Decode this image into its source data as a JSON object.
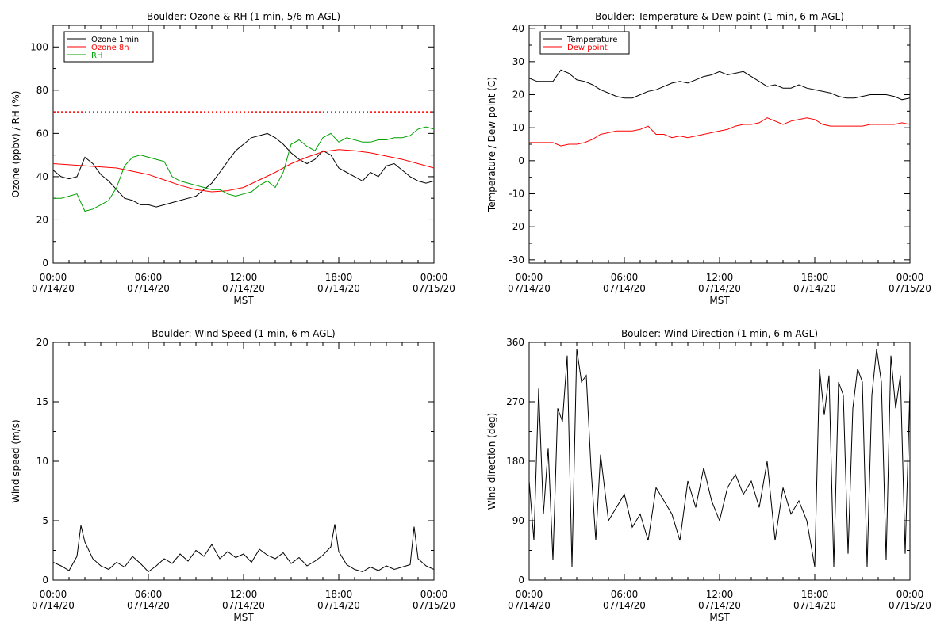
{
  "chart_data": [
    {
      "type": "line",
      "title": "Boulder: Ozone & RH (1 min, 5/6 m AGL)",
      "xlabel": "MST",
      "ylabel": "Ozone (ppbv) / RH (%)",
      "xlim": [
        0,
        24
      ],
      "ylim": [
        0,
        110
      ],
      "x_ticks": [
        {
          "v": 0,
          "l1": "00:00",
          "l2": "07/14/20"
        },
        {
          "v": 6,
          "l1": "06:00",
          "l2": "07/14/20"
        },
        {
          "v": 12,
          "l1": "12:00",
          "l2": "07/14/20"
        },
        {
          "v": 18,
          "l1": "18:00",
          "l2": "07/14/20"
        },
        {
          "v": 24,
          "l1": "00:00",
          "l2": "07/15/20"
        }
      ],
      "y_ticks": [
        0,
        20,
        40,
        60,
        80,
        100
      ],
      "legend": {
        "placement": "top-left"
      },
      "reference_lines": [
        {
          "y": 70,
          "color": "#ff0000",
          "style": "dotted"
        }
      ],
      "series": [
        {
          "name": "Ozone 1min",
          "color": "#000000",
          "x": [
            0,
            0.5,
            1,
            1.5,
            2,
            2.5,
            3,
            3.5,
            4,
            4.5,
            5,
            5.5,
            6,
            6.5,
            7,
            7.5,
            8,
            8.5,
            9,
            9.5,
            10,
            10.5,
            11,
            11.5,
            12,
            12.5,
            13,
            13.5,
            14,
            14.5,
            15,
            15.5,
            16,
            16.5,
            17,
            17.5,
            18,
            18.5,
            19,
            19.5,
            20,
            20.5,
            21,
            21.5,
            22,
            22.5,
            23,
            23.5,
            24
          ],
          "y": [
            43,
            40,
            39,
            40,
            49,
            46,
            41,
            38,
            34,
            30,
            29,
            27,
            27,
            26,
            27,
            28,
            29,
            30,
            31,
            34,
            37,
            42,
            47,
            52,
            55,
            58,
            59,
            60,
            58,
            55,
            51,
            48,
            46,
            48,
            52,
            50,
            44,
            42,
            40,
            38,
            42,
            40,
            45,
            46,
            43,
            40,
            38,
            37,
            38
          ]
        },
        {
          "name": "Ozone 8h",
          "color": "#ff0000",
          "x": [
            0,
            1,
            2,
            3,
            4,
            5,
            6,
            7,
            8,
            9,
            10,
            11,
            12,
            13,
            14,
            15,
            16,
            17,
            18,
            19,
            20,
            21,
            22,
            23,
            24
          ],
          "y": [
            46,
            45.5,
            45,
            44.5,
            44,
            42.5,
            41,
            38.5,
            36,
            34,
            33,
            33.5,
            35,
            38.5,
            42,
            46,
            49,
            51.5,
            52.5,
            52,
            51,
            49.5,
            48,
            46,
            44
          ]
        },
        {
          "name": "RH",
          "color": "#00a000",
          "x": [
            0,
            0.5,
            1,
            1.5,
            2,
            2.5,
            3,
            3.5,
            4,
            4.5,
            5,
            5.5,
            6,
            6.5,
            7,
            7.5,
            8,
            8.5,
            9,
            9.5,
            10,
            10.5,
            11,
            11.5,
            12,
            12.5,
            13,
            13.5,
            14,
            14.5,
            15,
            15.5,
            16,
            16.5,
            17,
            17.5,
            18,
            18.5,
            19,
            19.5,
            20,
            20.5,
            21,
            21.5,
            22,
            22.5,
            23,
            23.5,
            24
          ],
          "y": [
            30,
            30,
            31,
            32,
            24,
            25,
            27,
            29,
            35,
            45,
            49,
            50,
            49,
            48,
            47,
            40,
            38,
            37,
            36,
            35,
            34,
            34,
            32,
            31,
            32,
            33,
            36,
            38,
            35,
            42,
            55,
            57,
            54,
            52,
            58,
            60,
            56,
            58,
            57,
            56,
            56,
            57,
            57,
            58,
            58,
            59,
            62,
            63,
            62
          ]
        }
      ]
    },
    {
      "type": "line",
      "title": "Boulder: Temperature & Dew point (1 min, 6 m AGL)",
      "xlabel": "MST",
      "ylabel": "Temperature / Dew point (C)",
      "xlim": [
        0,
        24
      ],
      "ylim": [
        -31,
        41
      ],
      "x_ticks": [
        {
          "v": 0,
          "l1": "00:00",
          "l2": "07/14/20"
        },
        {
          "v": 6,
          "l1": "06:00",
          "l2": "07/14/20"
        },
        {
          "v": 12,
          "l1": "12:00",
          "l2": "07/14/20"
        },
        {
          "v": 18,
          "l1": "18:00",
          "l2": "07/14/20"
        },
        {
          "v": 24,
          "l1": "00:00",
          "l2": "07/15/20"
        }
      ],
      "y_ticks": [
        -30,
        -20,
        -10,
        0,
        10,
        20,
        30,
        40
      ],
      "legend": {
        "placement": "top-left"
      },
      "series": [
        {
          "name": "Temperature",
          "color": "#000000",
          "x": [
            0,
            0.5,
            1,
            1.5,
            2,
            2.5,
            3,
            3.5,
            4,
            4.5,
            5,
            5.5,
            6,
            6.5,
            7,
            7.5,
            8,
            8.5,
            9,
            9.5,
            10,
            10.5,
            11,
            11.5,
            12,
            12.5,
            13,
            13.5,
            14,
            14.5,
            15,
            15.5,
            16,
            16.5,
            17,
            17.5,
            18,
            18.5,
            19,
            19.5,
            20,
            20.5,
            21,
            21.5,
            22,
            22.5,
            23,
            23.5,
            24
          ],
          "y": [
            25,
            24,
            24,
            24,
            27.5,
            26.5,
            24.5,
            24,
            23,
            21.5,
            20.5,
            19.5,
            19,
            19,
            20,
            21,
            21.5,
            22.5,
            23.5,
            24,
            23.5,
            24.5,
            25.5,
            26,
            27,
            26,
            26.5,
            27,
            25.5,
            24,
            22.5,
            23,
            22,
            22,
            23,
            22,
            21.5,
            21,
            20.5,
            19.5,
            19,
            19,
            19.5,
            20,
            20,
            20,
            19.5,
            18.5,
            19
          ]
        },
        {
          "name": "Dew point",
          "color": "#ff0000",
          "x": [
            0,
            0.5,
            1,
            1.5,
            2,
            2.5,
            3,
            3.5,
            4,
            4.5,
            5,
            5.5,
            6,
            6.5,
            7,
            7.5,
            8,
            8.5,
            9,
            9.5,
            10,
            10.5,
            11,
            11.5,
            12,
            12.5,
            13,
            13.5,
            14,
            14.5,
            15,
            15.5,
            16,
            16.5,
            17,
            17.5,
            18,
            18.5,
            19,
            19.5,
            20,
            20.5,
            21,
            21.5,
            22,
            22.5,
            23,
            23.5,
            24
          ],
          "y": [
            5.5,
            5.5,
            5.5,
            5.5,
            4.5,
            5,
            5,
            5.5,
            6.5,
            8,
            8.5,
            9,
            9,
            9,
            9.5,
            10.5,
            8,
            8,
            7,
            7.5,
            7,
            7.5,
            8,
            8.5,
            9,
            9.5,
            10.5,
            11,
            11,
            11.5,
            13,
            12,
            11,
            12,
            12.5,
            13,
            12.5,
            11,
            10.5,
            10.5,
            10.5,
            10.5,
            10.5,
            11,
            11,
            11,
            11,
            11.5,
            11
          ]
        }
      ]
    },
    {
      "type": "line",
      "title": "Boulder: Wind Speed (1 min, 6 m AGL)",
      "xlabel": "MST",
      "ylabel": "Wind speed (m/s)",
      "xlim": [
        0,
        24
      ],
      "ylim": [
        0,
        20
      ],
      "x_ticks": [
        {
          "v": 0,
          "l1": "00:00",
          "l2": "07/14/20"
        },
        {
          "v": 6,
          "l1": "06:00",
          "l2": "07/14/20"
        },
        {
          "v": 12,
          "l1": "12:00",
          "l2": "07/14/20"
        },
        {
          "v": 18,
          "l1": "18:00",
          "l2": "07/14/20"
        },
        {
          "v": 24,
          "l1": "00:00",
          "l2": "07/15/20"
        }
      ],
      "y_ticks": [
        0,
        5,
        10,
        15,
        20
      ],
      "series": [
        {
          "color": "#000000",
          "x": [
            0,
            0.5,
            1,
            1.5,
            1.75,
            2,
            2.5,
            3,
            3.5,
            4,
            4.5,
            5,
            5.5,
            6,
            6.5,
            7,
            7.5,
            8,
            8.5,
            9,
            9.5,
            10,
            10.5,
            11,
            11.5,
            12,
            12.5,
            13,
            13.5,
            14,
            14.5,
            15,
            15.5,
            16,
            16.5,
            17,
            17.5,
            17.75,
            18,
            18.5,
            19,
            19.5,
            20,
            20.5,
            21,
            21.5,
            22,
            22.5,
            22.75,
            23,
            23.5,
            24
          ],
          "y": [
            1.5,
            1.2,
            0.8,
            2,
            4.6,
            3.2,
            1.8,
            1.2,
            0.9,
            1.5,
            1.1,
            2,
            1.4,
            0.7,
            1.2,
            1.8,
            1.4,
            2.2,
            1.6,
            2.5,
            2,
            3,
            1.8,
            2.4,
            1.9,
            2.2,
            1.5,
            2.6,
            2.1,
            1.8,
            2.3,
            1.4,
            1.9,
            1.2,
            1.6,
            2.1,
            2.8,
            4.7,
            2.4,
            1.3,
            0.9,
            0.7,
            1.1,
            0.8,
            1.2,
            0.9,
            1.1,
            1.3,
            4.5,
            1.8,
            1.2,
            0.9
          ]
        }
      ]
    },
    {
      "type": "line",
      "title": "Boulder: Wind Direction (1 min, 6 m AGL)",
      "xlabel": "MST",
      "ylabel": "Wind direction (deg)",
      "xlim": [
        0,
        24
      ],
      "ylim": [
        0,
        360
      ],
      "x_ticks": [
        {
          "v": 0,
          "l1": "00:00",
          "l2": "07/14/20"
        },
        {
          "v": 6,
          "l1": "06:00",
          "l2": "07/14/20"
        },
        {
          "v": 12,
          "l1": "12:00",
          "l2": "07/14/20"
        },
        {
          "v": 18,
          "l1": "18:00",
          "l2": "07/14/20"
        },
        {
          "v": 24,
          "l1": "00:00",
          "l2": "07/15/20"
        }
      ],
      "y_ticks": [
        0,
        90,
        180,
        270,
        360
      ],
      "series": [
        {
          "color": "#000000",
          "x": [
            0,
            0.3,
            0.6,
            0.9,
            1.2,
            1.5,
            1.8,
            2.1,
            2.4,
            2.7,
            3,
            3.3,
            3.6,
            3.9,
            4.2,
            4.5,
            5,
            5.5,
            6,
            6.5,
            7,
            7.5,
            8,
            8.5,
            9,
            9.5,
            10,
            10.5,
            11,
            11.5,
            12,
            12.5,
            13,
            13.5,
            14,
            14.5,
            15,
            15.5,
            16,
            16.5,
            17,
            17.5,
            18,
            18.3,
            18.6,
            18.9,
            19.2,
            19.5,
            19.8,
            20.1,
            20.4,
            20.7,
            21,
            21.3,
            21.6,
            21.9,
            22.2,
            22.5,
            22.8,
            23.1,
            23.4,
            23.7,
            24
          ],
          "y": [
            150,
            60,
            290,
            100,
            200,
            30,
            260,
            240,
            340,
            20,
            350,
            300,
            310,
            170,
            60,
            190,
            90,
            110,
            130,
            80,
            100,
            60,
            140,
            120,
            100,
            60,
            150,
            110,
            170,
            120,
            90,
            140,
            160,
            130,
            150,
            110,
            180,
            60,
            140,
            100,
            120,
            90,
            20,
            320,
            250,
            310,
            20,
            300,
            280,
            40,
            260,
            320,
            300,
            20,
            280,
            350,
            300,
            30,
            340,
            260,
            310,
            40,
            290
          ]
        }
      ]
    }
  ]
}
